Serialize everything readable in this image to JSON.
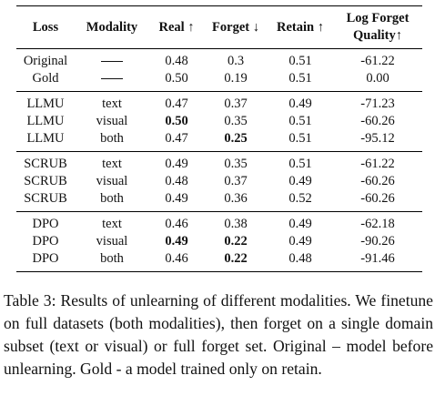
{
  "table": {
    "headers": {
      "loss": "Loss",
      "modality": "Modality",
      "real": "Real ↑",
      "forget": "Forget ↓",
      "retain": "Retain ↑",
      "lfq_line1": "Log Forget",
      "lfq_line2": "Quality↑"
    },
    "groups": [
      {
        "rows": [
          {
            "loss": "Original",
            "modality": "—",
            "real": "0.48",
            "forget": "0.3",
            "retain": "0.51",
            "lfq": "-61.22",
            "bold": []
          },
          {
            "loss": "Gold",
            "modality": "—",
            "real": "0.50",
            "forget": "0.19",
            "retain": "0.51",
            "lfq": "0.00",
            "bold": []
          }
        ]
      },
      {
        "rows": [
          {
            "loss": "LLMU",
            "modality": "text",
            "real": "0.47",
            "forget": "0.37",
            "retain": "0.49",
            "lfq": "-71.23",
            "bold": []
          },
          {
            "loss": "LLMU",
            "modality": "visual",
            "real": "0.50",
            "forget": "0.35",
            "retain": "0.51",
            "lfq": "-60.26",
            "bold": [
              "real"
            ]
          },
          {
            "loss": "LLMU",
            "modality": "both",
            "real": "0.47",
            "forget": "0.25",
            "retain": "0.51",
            "lfq": "-95.12",
            "bold": [
              "forget"
            ]
          }
        ]
      },
      {
        "rows": [
          {
            "loss": "SCRUB",
            "modality": "text",
            "real": "0.49",
            "forget": "0.35",
            "retain": "0.51",
            "lfq": "-61.22",
            "bold": []
          },
          {
            "loss": "SCRUB",
            "modality": "visual",
            "real": "0.48",
            "forget": "0.37",
            "retain": "0.49",
            "lfq": "-60.26",
            "bold": []
          },
          {
            "loss": "SCRUB",
            "modality": "both",
            "real": "0.49",
            "forget": "0.36",
            "retain": "0.52",
            "lfq": "-60.26",
            "bold": []
          }
        ]
      },
      {
        "rows": [
          {
            "loss": "DPO",
            "modality": "text",
            "real": "0.46",
            "forget": "0.38",
            "retain": "0.49",
            "lfq": "-62.18",
            "bold": []
          },
          {
            "loss": "DPO",
            "modality": "visual",
            "real": "0.49",
            "forget": "0.22",
            "retain": "0.49",
            "lfq": "-90.26",
            "bold": [
              "real",
              "forget"
            ]
          },
          {
            "loss": "DPO",
            "modality": "both",
            "real": "0.46",
            "forget": "0.22",
            "retain": "0.48",
            "lfq": "-91.46",
            "bold": [
              "forget"
            ]
          }
        ]
      }
    ]
  },
  "caption": {
    "text": "Table 3: Results of unlearning of different modalities. We finetune on full datasets (both modalities), then forget on a single domain subset (text or visual) or full forget set. Original – model before unlearning. Gold - a model trained only on retain."
  }
}
